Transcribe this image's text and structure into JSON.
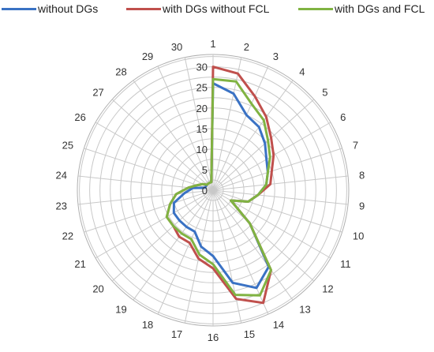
{
  "chart_data": {
    "type": "radar",
    "categories": [
      "1",
      "2",
      "3",
      "4",
      "5",
      "6",
      "7",
      "8",
      "9",
      "10",
      "11",
      "12",
      "13",
      "14",
      "15",
      "16",
      "17",
      "18",
      "19",
      "20",
      "21",
      "22",
      "23",
      "24",
      "25",
      "26",
      "27",
      "28",
      "29",
      "30"
    ],
    "radial_ticks": [
      "0",
      "5",
      "10",
      "15",
      "20",
      "25",
      "30"
    ],
    "rlim": [
      0,
      33
    ],
    "grid": true,
    "legend_position": "top",
    "series": [
      {
        "name": "without DGs",
        "color": "#3a72c4",
        "values": [
          26,
          24,
          20,
          19,
          17,
          15,
          14,
          13,
          11,
          9,
          5,
          12,
          23,
          26,
          23,
          16,
          14,
          11,
          11,
          11,
          11,
          10,
          7,
          5,
          2,
          2,
          2,
          2,
          2,
          2
        ]
      },
      {
        "name": "with DGs without FCL",
        "color": "#c0504d",
        "values": [
          30,
          29,
          25,
          22,
          19,
          17,
          15,
          14,
          11,
          9,
          5,
          12,
          24,
          30,
          27,
          19,
          17,
          14,
          14,
          13,
          13,
          11,
          9,
          6,
          4,
          3,
          2,
          2,
          2,
          2
        ]
      },
      {
        "name": "with DGs and FCL",
        "color": "#80b342",
        "values": [
          27,
          27,
          23,
          21,
          18,
          16,
          14,
          13,
          11,
          9,
          5,
          12,
          24,
          28,
          26,
          18,
          16,
          13,
          13,
          13,
          13,
          11,
          9,
          6,
          4,
          3,
          2,
          2,
          2,
          2
        ]
      }
    ]
  }
}
